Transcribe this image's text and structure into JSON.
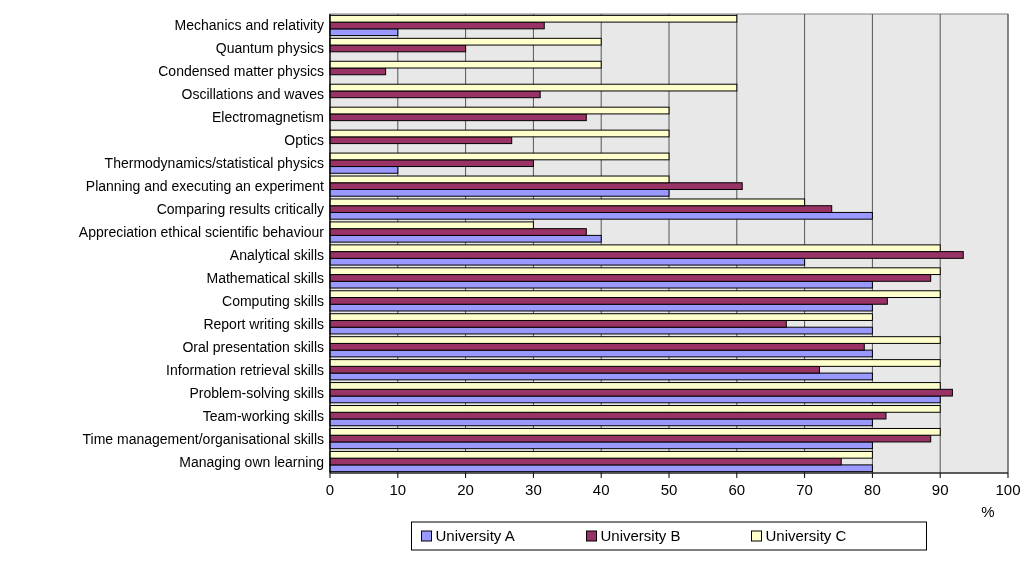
{
  "chart_data": {
    "type": "bar",
    "orientation": "horizontal",
    "xlabel": "%",
    "categories": [
      "Mechanics and relativity",
      "Quantum physics",
      "Condensed matter physics",
      "Oscillations and waves",
      "Electromagnetism",
      "Optics",
      "Thermodynamics/statistical physics",
      "Planning and executing an experiment",
      "Comparing results critically",
      "Appreciation ethical scientific behaviour",
      "Analytical skills",
      "Mathematical skills",
      "Computing skills",
      "Report writing skills",
      "Oral presentation skills",
      "Information retrieval skills",
      "Problem-solving skills",
      "Team-working skills",
      "Time management/organisational skills",
      "Managing own learning"
    ],
    "series": [
      {
        "name": "University A",
        "color": "#9999ff",
        "values": [
          10,
          0,
          0,
          0,
          0,
          0,
          10,
          50,
          80,
          40,
          70,
          80,
          80,
          80,
          80,
          80,
          90,
          80,
          80,
          80
        ]
      },
      {
        "name": "University B",
        "color": "#993366",
        "values": [
          31.6,
          20,
          8.2,
          31,
          37.8,
          26.8,
          30,
          60.8,
          74,
          37.8,
          93.4,
          88.6,
          82.2,
          67.3,
          78.8,
          72.2,
          91.8,
          82,
          88.6,
          75.4
        ]
      },
      {
        "name": "University C",
        "color": "#ffffcc",
        "values": [
          60,
          40,
          40,
          60,
          50,
          50,
          50,
          50,
          70,
          30,
          90,
          90,
          90,
          80,
          90,
          90,
          90,
          90,
          90,
          80
        ]
      }
    ],
    "xlim": [
      0,
      100
    ],
    "xticks": [
      0,
      10,
      20,
      30,
      40,
      50,
      60,
      70,
      80,
      90,
      100
    ],
    "grid": "x",
    "legend": "bottom"
  }
}
